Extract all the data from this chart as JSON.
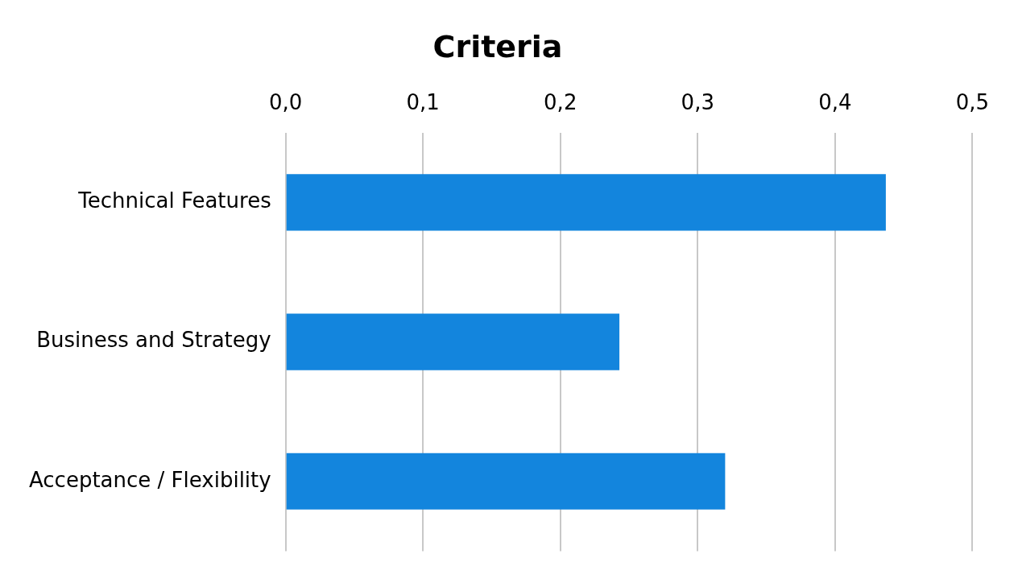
{
  "chart_data": {
    "type": "bar",
    "orientation": "horizontal",
    "title": "Criteria",
    "categories": [
      "Technical Features",
      "Business and Strategy",
      "Acceptance / Flexibility"
    ],
    "values": [
      0.437,
      0.243,
      0.32
    ],
    "color": "#1385dd",
    "xlim": [
      0,
      0.5
    ],
    "xticks": [
      {
        "value": 0,
        "label": "0,0"
      },
      {
        "value": 0.1,
        "label": "0,1"
      },
      {
        "value": 0.2,
        "label": "0,2"
      },
      {
        "value": 0.3,
        "label": "0,3"
      },
      {
        "value": 0.4,
        "label": "0,4"
      },
      {
        "value": 0.5,
        "label": "0,5"
      }
    ],
    "grid": "x"
  }
}
